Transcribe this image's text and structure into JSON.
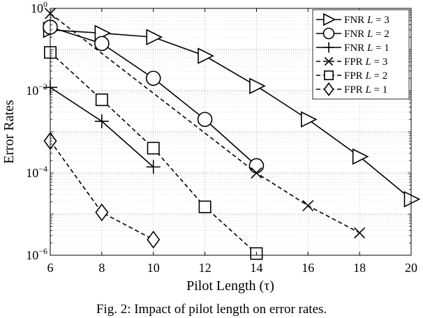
{
  "figure": {
    "caption": "Fig. 2: Impact of pilot length on error rates."
  },
  "chart_data": {
    "type": "line",
    "xlabel": "Pilot Length (τ)",
    "ylabel": "Error Rates",
    "xlim": [
      6,
      20
    ],
    "ylim_log10": [
      -6,
      0
    ],
    "y_scale": "log",
    "xticks": [
      6,
      8,
      10,
      12,
      14,
      16,
      18,
      20
    ],
    "ytick_exponents": [
      0,
      -2,
      -4,
      -6
    ],
    "grid": true,
    "grid_style": "dotted",
    "legend_position": "top-right",
    "series": [
      {
        "name": "FNR",
        "L": "3",
        "marker": "triangle-right",
        "dash": "solid",
        "x": [
          6,
          8,
          10,
          12,
          14,
          16,
          18,
          20
        ],
        "y": [
          0.3,
          0.25,
          0.2,
          0.07,
          0.013,
          0.002,
          0.00025,
          2.3e-05
        ]
      },
      {
        "name": "FNR",
        "L": "2",
        "marker": "circle",
        "dash": "solid",
        "x": [
          6,
          8,
          10,
          12,
          14
        ],
        "y": [
          0.35,
          0.14,
          0.02,
          0.002,
          0.00015
        ]
      },
      {
        "name": "FNR",
        "L": "1",
        "marker": "plus",
        "dash": "solid",
        "x": [
          6,
          8,
          10
        ],
        "y": [
          0.012,
          0.0018,
          0.00014
        ]
      },
      {
        "name": "FPR",
        "L": "3",
        "marker": "cross",
        "dash": "dashed",
        "x": [
          6,
          14,
          16,
          18
        ],
        "y": [
          0.75,
          0.0001,
          1.6e-05,
          3.5e-06
        ]
      },
      {
        "name": "FPR",
        "L": "2",
        "marker": "square",
        "dash": "dashed",
        "x": [
          6,
          8,
          10,
          12,
          14
        ],
        "y": [
          0.085,
          0.006,
          0.0004,
          1.5e-05,
          1.1e-06
        ]
      },
      {
        "name": "FPR",
        "L": "1",
        "marker": "diamond",
        "dash": "dashed",
        "x": [
          6,
          8,
          10
        ],
        "y": [
          0.0006,
          1.1e-05,
          2.4e-06
        ]
      }
    ]
  }
}
